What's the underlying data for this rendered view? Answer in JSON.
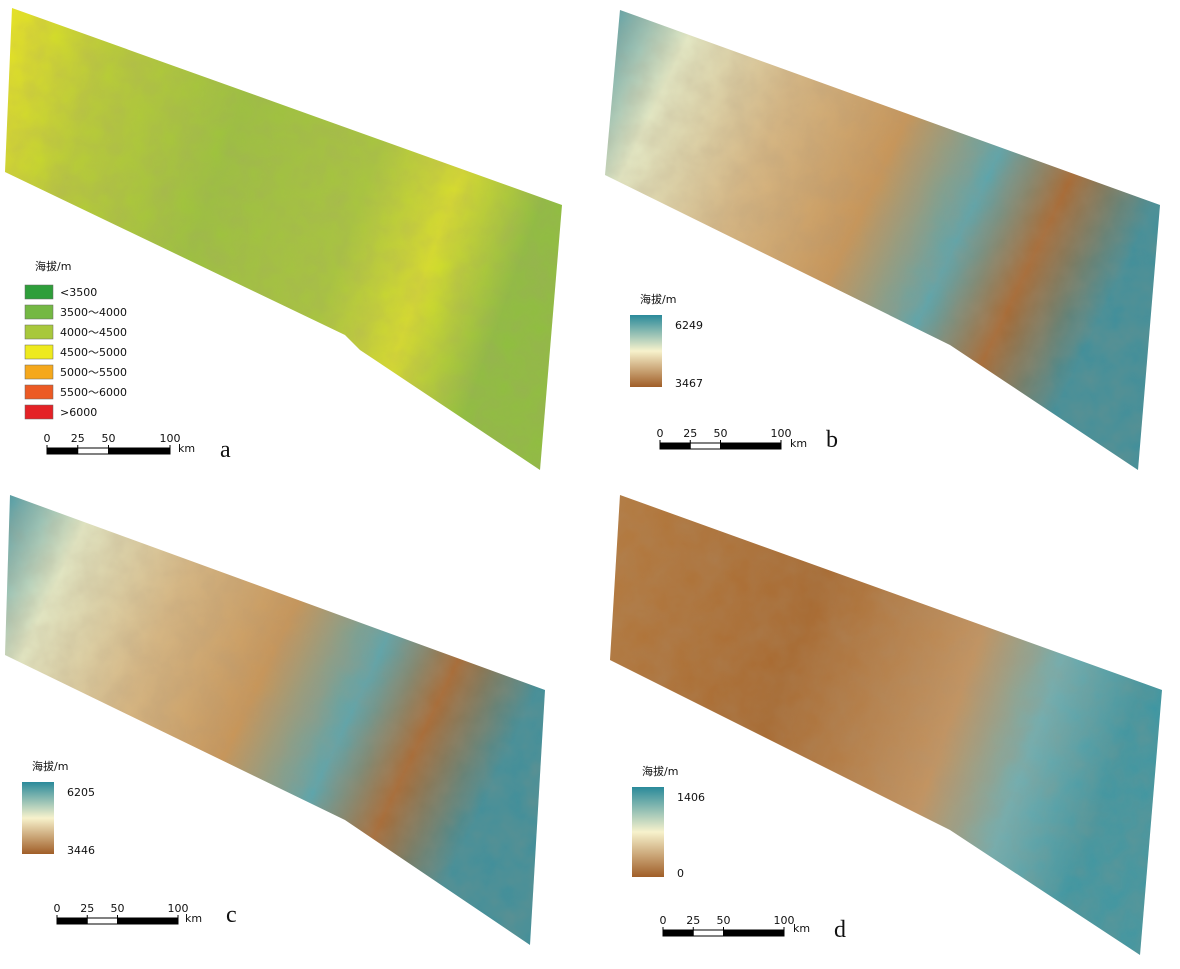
{
  "panels": [
    {
      "letter": "a",
      "legend": {
        "title": "海拔/m",
        "items": [
          {
            "label": "<3500",
            "color": "#2e9e3a"
          },
          {
            "label": "3500～4000",
            "color": "#74b843"
          },
          {
            "label": "4000～4500",
            "color": "#a8c83c"
          },
          {
            "label": "4500～5000",
            "color": "#eeea1e"
          },
          {
            "label": "5000～5500",
            "color": "#f5a81c"
          },
          {
            "label": "5500～6000",
            "color": "#ec5a24"
          },
          {
            "label": ">6000",
            "color": "#e42226"
          }
        ]
      },
      "scale": {
        "ticks": [
          0,
          25,
          50,
          100
        ],
        "unit": "km"
      }
    },
    {
      "letter": "b",
      "legend": {
        "title": "海拔/m",
        "max": 6249,
        "min": 3467
      },
      "scale": {
        "ticks": [
          0,
          25,
          50,
          100
        ],
        "unit": "km"
      }
    },
    {
      "letter": "c",
      "legend": {
        "title": "海拔/m",
        "max": 6205,
        "min": 3446
      },
      "scale": {
        "ticks": [
          0,
          25,
          50,
          100
        ],
        "unit": "km"
      }
    },
    {
      "letter": "d",
      "legend": {
        "title": "海拔/m",
        "max": 1406,
        "min": 0
      },
      "scale": {
        "ticks": [
          0,
          25,
          50,
          100
        ],
        "unit": "km"
      }
    }
  ]
}
